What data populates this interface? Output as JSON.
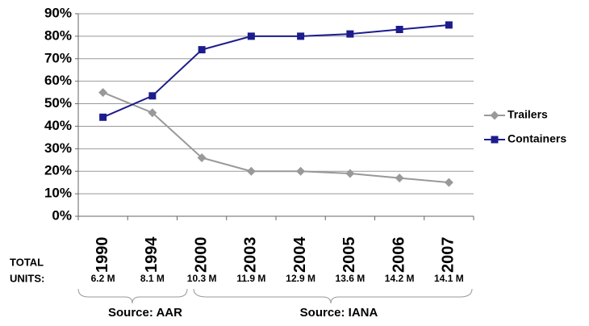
{
  "chart_data": {
    "type": "line",
    "categories": [
      "1990",
      "1994",
      "2000",
      "2003",
      "2004",
      "2005",
      "2006",
      "2007"
    ],
    "series": [
      {
        "name": "Trailers",
        "color": "#999999",
        "marker": "diamond",
        "values": [
          55,
          46,
          26,
          20,
          20,
          19,
          17,
          15
        ]
      },
      {
        "name": "Containers",
        "color": "#1c1c8c",
        "marker": "square",
        "values": [
          44,
          53.5,
          74,
          80,
          80,
          81,
          83,
          85
        ]
      }
    ],
    "ylim": [
      0,
      90
    ],
    "yticks": [
      {
        "value": 0,
        "label": "0%"
      },
      {
        "value": 10,
        "label": "10%"
      },
      {
        "value": 20,
        "label": "20%"
      },
      {
        "value": 30,
        "label": "30%"
      },
      {
        "value": 40,
        "label": "40%"
      },
      {
        "value": 50,
        "label": "50%"
      },
      {
        "value": 60,
        "label": "60%"
      },
      {
        "value": 70,
        "label": "70%"
      },
      {
        "value": 80,
        "label": "80%"
      },
      {
        "value": 90,
        "label": "90%"
      }
    ],
    "grid": true,
    "legend": "right",
    "total_units_label": [
      "TOTAL",
      "UNITS:"
    ],
    "total_units": [
      "6.2 M",
      "8.1 M",
      "10.3 M",
      "11.9 M",
      "12.9 M",
      "13.6 M",
      "14.2 M",
      "14.1 M"
    ],
    "sources": [
      "Source: AAR",
      "Source: IANA"
    ]
  }
}
